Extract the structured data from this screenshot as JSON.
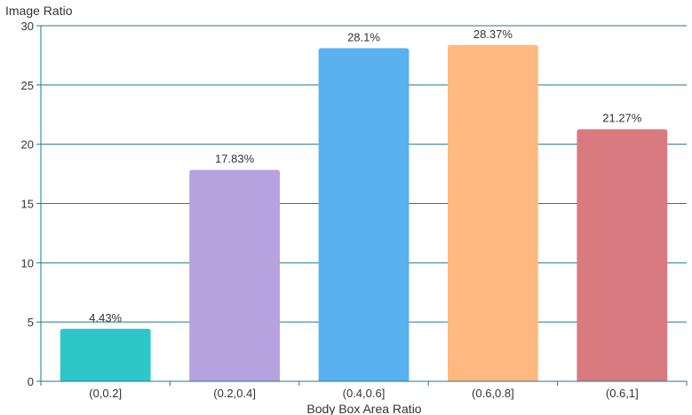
{
  "chart_data": {
    "type": "bar",
    "title": "",
    "xlabel": "Body Box Area Ratio",
    "ylabel": "Image Ratio",
    "categories": [
      "(0,0.2]",
      "(0.2,0.4]",
      "(0.4,0.6]",
      "(0.6,0.8]",
      "(0.6,1]"
    ],
    "values": [
      4.43,
      17.83,
      28.1,
      28.37,
      21.27
    ],
    "data_labels": [
      "4.43%",
      "17.83%",
      "28.1%",
      "28.37%",
      "21.27%"
    ],
    "colors": [
      "#2ec7c9",
      "#b6a2de",
      "#5ab1ef",
      "#ffb980",
      "#d87a80"
    ],
    "ylim": [
      0,
      30
    ],
    "yticks": [
      "0",
      "5",
      "10",
      "15",
      "20",
      "25",
      "30"
    ],
    "grid": true,
    "legend": "none"
  },
  "style": {
    "axis_color": "#1f7a8c",
    "grid_color": "#1f7a8c"
  }
}
